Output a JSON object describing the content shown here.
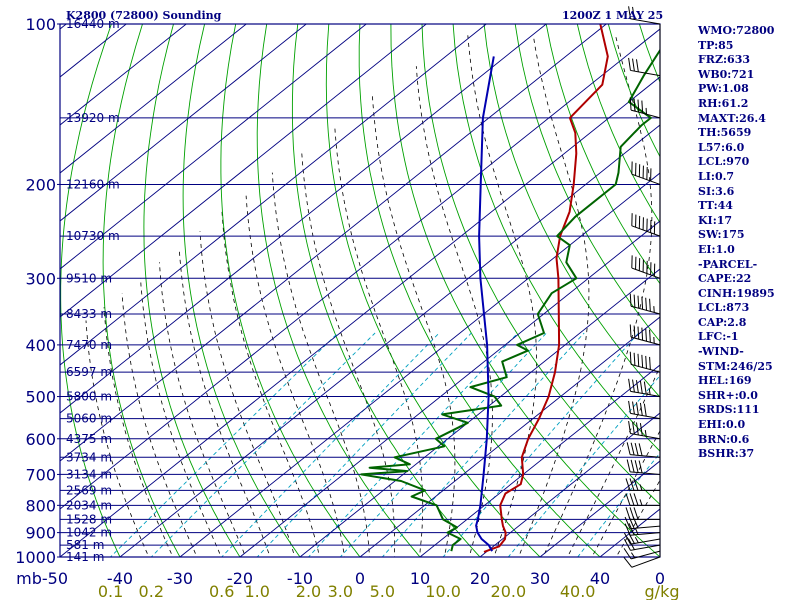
{
  "header": {
    "station": "K2800 (72800) Sounding",
    "valid": "1200Z  1 MAY 25"
  },
  "indices": [
    "WMO:72800",
    "TP:85",
    "FRZ:633",
    "WB0:721",
    "PW:1.08",
    "RH:61.2",
    "MAXT:26.4",
    "TH:5659",
    "L57:6.0",
    "LCL:970",
    "LI:0.7",
    "SI:3.6",
    "TT:44",
    "KI:17",
    "SW:175",
    "EI:1.0",
    "-PARCEL-",
    "CAPE:22",
    "CINH:19895",
    "LCL:873",
    "CAP:2.8",
    "LFC:-1",
    "-WIND-",
    "STM:246/25",
    "HEL:169",
    "SHR+:0.0",
    "SRDS:111",
    "EHI:0.0",
    "BRN:0.6",
    "BSHR:37"
  ],
  "colors": {
    "frame": "#000080",
    "isobar": "#000080",
    "isotherm": "#000080",
    "dry_adiabat": "#00a000",
    "moist_adiabat": "#000000",
    "mixing_ratio": "#00a0c0",
    "temperature": "#b00000",
    "dewpoint": "#006400",
    "parcel": "#0000b0",
    "wind_barb": "#000000",
    "text": "#000080",
    "mixing_label": "#808000"
  },
  "chart_data": {
    "type": "skew-t",
    "pressure_ticks": [
      100,
      200,
      300,
      400,
      500,
      600,
      700,
      800,
      900,
      1000
    ],
    "temperature_ticks": [
      -50,
      -40,
      -30,
      -20,
      -10,
      0,
      10,
      20,
      30,
      40,
      50
    ],
    "temperature_tick_labels": [
      "mb-50",
      "-40",
      "-30",
      "-20",
      "-10",
      "0",
      "10",
      "20",
      "30",
      "40",
      "0"
    ],
    "xlim": [
      -50,
      50
    ],
    "ylim": [
      1000,
      100
    ],
    "y_scale": "log",
    "mixing_ratio_ticks": [
      0.1,
      0.2,
      0.6,
      1.0,
      2.0,
      3.0,
      5.0,
      10.0,
      20.0,
      40.0
    ],
    "mixing_ratio_labels": [
      "0.1",
      "0.2",
      "0.6",
      "1.0",
      "2.0",
      "3.0",
      "5.0",
      "10.0",
      "20.0",
      "40.0"
    ],
    "mixing_ratio_unit": "g/kg",
    "heights": [
      {
        "p": 100,
        "label": "16440 m"
      },
      {
        "p": 150,
        "label": "13920 m"
      },
      {
        "p": 200,
        "label": "12160 m"
      },
      {
        "p": 250,
        "label": "10730 m"
      },
      {
        "p": 300,
        "label": "9510 m"
      },
      {
        "p": 350,
        "label": "8433 m"
      },
      {
        "p": 400,
        "label": "7470 m"
      },
      {
        "p": 450,
        "label": "6597 m"
      },
      {
        "p": 500,
        "label": "5800 m"
      },
      {
        "p": 550,
        "label": "5060 m"
      },
      {
        "p": 600,
        "label": "4375 m"
      },
      {
        "p": 650,
        "label": "3734 m"
      },
      {
        "p": 700,
        "label": "3134 m"
      },
      {
        "p": 750,
        "label": "2569 m"
      },
      {
        "p": 800,
        "label": "2034 m"
      },
      {
        "p": 850,
        "label": "1528 m"
      },
      {
        "p": 900,
        "label": "1042 m"
      },
      {
        "p": 950,
        "label": "581 m"
      },
      {
        "p": 1000,
        "label": "141 m"
      }
    ],
    "series": [
      {
        "key": "temperature",
        "points": [
          [
            978,
            19.6
          ],
          [
            955,
            21.0
          ],
          [
            925,
            20.4
          ],
          [
            900,
            19.2
          ],
          [
            875,
            17.4
          ],
          [
            850,
            15.8
          ],
          [
            800,
            12.6
          ],
          [
            760,
            11.0
          ],
          [
            730,
            11.6
          ],
          [
            700,
            10.0
          ],
          [
            650,
            6.2
          ],
          [
            600,
            3.4
          ],
          [
            550,
            1.0
          ],
          [
            500,
            -2.0
          ],
          [
            450,
            -6.0
          ],
          [
            400,
            -11.0
          ],
          [
            350,
            -17.5
          ],
          [
            300,
            -25.0
          ],
          [
            275,
            -29.5
          ],
          [
            250,
            -33.5
          ],
          [
            225,
            -37.0
          ],
          [
            200,
            -42.0
          ],
          [
            175,
            -48.0
          ],
          [
            160,
            -52.5
          ],
          [
            150,
            -56.5
          ],
          [
            130,
            -58.0
          ],
          [
            115,
            -63.0
          ],
          [
            100,
            -71.0
          ]
        ]
      },
      {
        "key": "dewpoint",
        "points": [
          [
            975,
            14.0
          ],
          [
            950,
            13.0
          ],
          [
            925,
            13.0
          ],
          [
            900,
            9.5
          ],
          [
            880,
            10.0
          ],
          [
            850,
            6.0
          ],
          [
            800,
            2.0
          ],
          [
            770,
            -4.0
          ],
          [
            750,
            -3.0
          ],
          [
            720,
            -9.0
          ],
          [
            700,
            -17.0
          ],
          [
            690,
            -10.0
          ],
          [
            680,
            -17.0
          ],
          [
            670,
            -11.0
          ],
          [
            650,
            -15.0
          ],
          [
            620,
            -9.0
          ],
          [
            600,
            -12.0
          ],
          [
            560,
            -10.0
          ],
          [
            540,
            -16.0
          ],
          [
            520,
            -8.0
          ],
          [
            500,
            -11.0
          ],
          [
            480,
            -17.0
          ],
          [
            460,
            -13.0
          ],
          [
            430,
            -17.0
          ],
          [
            410,
            -15.0
          ],
          [
            400,
            -18.0
          ],
          [
            380,
            -16.0
          ],
          [
            350,
            -21.0
          ],
          [
            320,
            -23.0
          ],
          [
            300,
            -22.0
          ],
          [
            280,
            -27.0
          ],
          [
            260,
            -30.0
          ],
          [
            250,
            -34.0
          ],
          [
            230,
            -35.0
          ],
          [
            200,
            -35.0
          ],
          [
            190,
            -37.0
          ],
          [
            170,
            -42.0
          ],
          [
            155,
            -43.0
          ],
          [
            150,
            -43.0
          ],
          [
            140,
            -50.0
          ],
          [
            125,
            -53.0
          ],
          [
            110,
            -56.0
          ],
          [
            100,
            -60.0
          ]
        ]
      },
      {
        "key": "parcel",
        "points": [
          [
            975,
            20.8
          ],
          [
            950,
            19.0
          ],
          [
            925,
            16.5
          ],
          [
            900,
            14.5
          ],
          [
            873,
            12.8
          ],
          [
            850,
            11.8
          ],
          [
            800,
            9.3
          ],
          [
            700,
            3.4
          ],
          [
            600,
            -3.5
          ],
          [
            500,
            -12.0
          ],
          [
            400,
            -23.0
          ],
          [
            300,
            -38.0
          ],
          [
            250,
            -47.0
          ],
          [
            200,
            -57.5
          ],
          [
            150,
            -71.0
          ],
          [
            115,
            -82.0
          ]
        ]
      }
    ],
    "wind_profile": [
      {
        "p": 1000,
        "dir": 250,
        "spd": 10
      },
      {
        "p": 975,
        "dir": 255,
        "spd": 15
      },
      {
        "p": 950,
        "dir": 260,
        "spd": 20
      },
      {
        "p": 925,
        "dir": 260,
        "spd": 25
      },
      {
        "p": 900,
        "dir": 265,
        "spd": 25
      },
      {
        "p": 875,
        "dir": 265,
        "spd": 30
      },
      {
        "p": 850,
        "dir": 270,
        "spd": 30
      },
      {
        "p": 800,
        "dir": 270,
        "spd": 35
      },
      {
        "p": 750,
        "dir": 270,
        "spd": 35
      },
      {
        "p": 700,
        "dir": 275,
        "spd": 40
      },
      {
        "p": 650,
        "dir": 275,
        "spd": 40
      },
      {
        "p": 600,
        "dir": 280,
        "spd": 45
      },
      {
        "p": 550,
        "dir": 280,
        "spd": 50
      },
      {
        "p": 500,
        "dir": 280,
        "spd": 55
      },
      {
        "p": 450,
        "dir": 285,
        "spd": 60
      },
      {
        "p": 400,
        "dir": 285,
        "spd": 65
      },
      {
        "p": 350,
        "dir": 285,
        "spd": 65
      },
      {
        "p": 300,
        "dir": 290,
        "spd": 70
      },
      {
        "p": 250,
        "dir": 290,
        "spd": 70
      },
      {
        "p": 200,
        "dir": 290,
        "spd": 60
      },
      {
        "p": 150,
        "dir": 285,
        "spd": 45
      },
      {
        "p": 125,
        "dir": 280,
        "spd": 30
      },
      {
        "p": 100,
        "dir": 280,
        "spd": 20
      }
    ]
  }
}
